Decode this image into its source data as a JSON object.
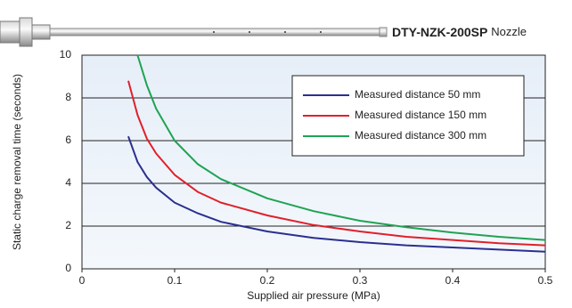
{
  "nozzle_label": {
    "model": "DTY-NZK-200SP",
    "word": "Nozzle"
  },
  "chart_data": {
    "type": "line",
    "xlabel": "Supplied air pressure (MPa)",
    "ylabel": "Static charge removal time (seconds)",
    "x": [
      0.05,
      0.06,
      0.07,
      0.08,
      0.1,
      0.125,
      0.15,
      0.2,
      0.25,
      0.3,
      0.35,
      0.4,
      0.45,
      0.5
    ],
    "series": [
      {
        "name": "Measured distance 50 mm",
        "color": "#2b2f8f",
        "values": [
          6.2,
          5.0,
          4.3,
          3.8,
          3.1,
          2.6,
          2.2,
          1.75,
          1.45,
          1.25,
          1.1,
          1.0,
          0.9,
          0.8
        ]
      },
      {
        "name": "Measured distance 150 mm",
        "color": "#e0202a",
        "values": [
          8.8,
          7.2,
          6.1,
          5.4,
          4.4,
          3.6,
          3.1,
          2.5,
          2.05,
          1.75,
          1.5,
          1.35,
          1.2,
          1.1
        ]
      },
      {
        "name": "Measured distance 300 mm",
        "color": "#1fa352",
        "values": [
          null,
          10,
          8.6,
          7.5,
          6.0,
          4.9,
          4.2,
          3.3,
          2.7,
          2.25,
          1.95,
          1.7,
          1.5,
          1.35
        ]
      }
    ],
    "xlim": [
      0,
      0.5
    ],
    "xticks": [
      0,
      0.1,
      0.2,
      0.3,
      0.4,
      0.5
    ],
    "ylim": [
      0,
      10
    ],
    "yticks": [
      0,
      2,
      4,
      6,
      8,
      10
    ],
    "grid": true
  }
}
